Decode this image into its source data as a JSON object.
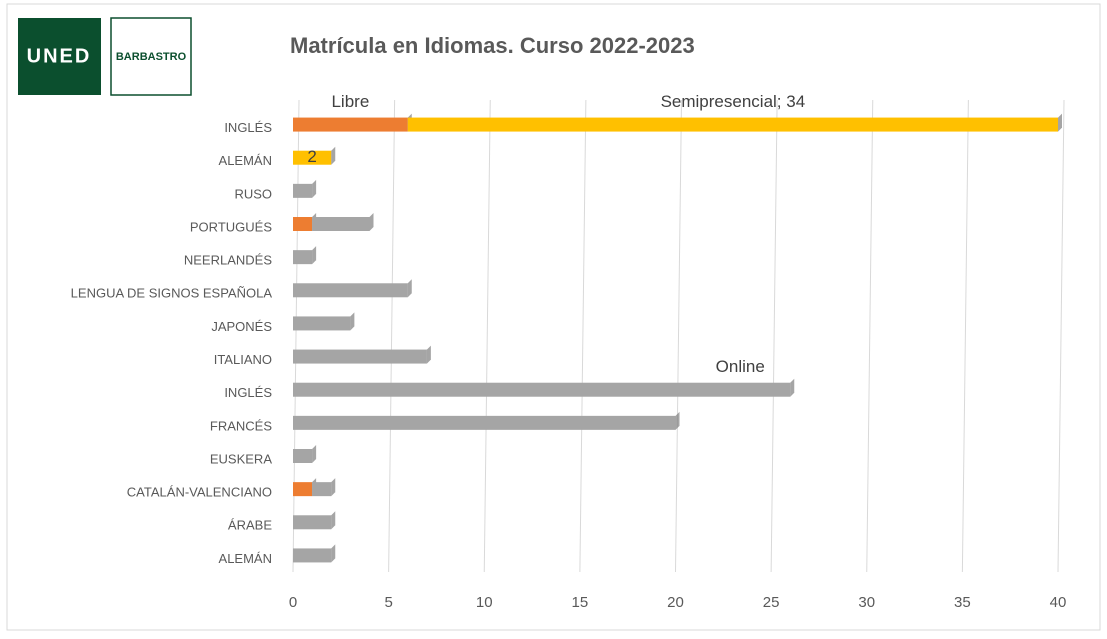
{
  "logo": {
    "brand": "UNED",
    "center": "BARBASTRO"
  },
  "chart_data": {
    "type": "stacked_bar_horizontal",
    "title": "Matrícula en Idiomas. Curso 2022-2023",
    "categories": [
      "INGLÉS",
      "ALEMÁN",
      "RUSO",
      "PORTUGUÉS",
      "NEERLANDÉS",
      "LENGUA DE SIGNOS ESPAÑOLA",
      "JAPONÉS",
      "ITALIANO",
      "INGLÉS",
      "FRANCÉS",
      "EUSKERA",
      "CATALÁN-VALENCIANO",
      "ÁRABE",
      "ALEMÁN"
    ],
    "series": [
      {
        "name": "Libre",
        "color": "#ed7d31",
        "values": [
          6,
          0,
          0,
          1,
          0,
          0,
          0,
          0,
          0,
          0,
          0,
          1,
          0,
          0
        ],
        "value_labels": [
          "Libre",
          null,
          null,
          null,
          null,
          null,
          null,
          null,
          null,
          null,
          null,
          null,
          null,
          null
        ]
      },
      {
        "name": "Semipresencial",
        "color": "#ffc000",
        "values": [
          34,
          2,
          0,
          0,
          0,
          0,
          0,
          0,
          0,
          0,
          0,
          0,
          0,
          0
        ],
        "value_labels": [
          "Semipresencial; 34",
          "2",
          null,
          null,
          null,
          null,
          null,
          null,
          null,
          null,
          null,
          null,
          null,
          null
        ]
      },
      {
        "name": "Online",
        "color": "#a5a5a5",
        "values": [
          0,
          0,
          1,
          3,
          1,
          6,
          3,
          7,
          26,
          20,
          1,
          1,
          2,
          2
        ],
        "value_labels": [
          null,
          null,
          null,
          null,
          null,
          null,
          null,
          null,
          "Online",
          null,
          null,
          null,
          null,
          null
        ]
      }
    ],
    "xlim": [
      0,
      40
    ],
    "xticks": [
      0,
      5,
      10,
      15,
      20,
      25,
      30,
      35,
      40
    ],
    "grid": true
  }
}
